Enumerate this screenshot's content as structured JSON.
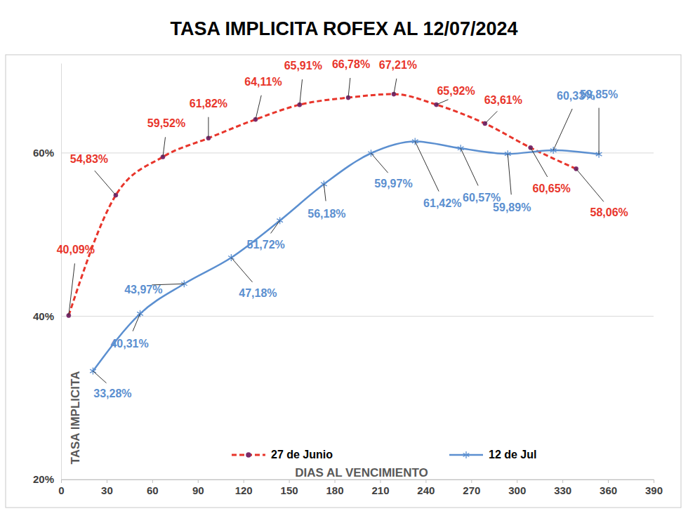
{
  "chart_data": {
    "type": "line",
    "title": "TASA IMPLICITA ROFEX AL 12/07/2024",
    "x_label": "DIAS AL VENCIMIENTO",
    "y_label": "TASA IMPLICITA",
    "xlim": [
      0,
      390
    ],
    "xticks": [
      0,
      30,
      60,
      90,
      120,
      150,
      180,
      210,
      240,
      270,
      300,
      330,
      360,
      390
    ],
    "ylim": [
      20,
      71
    ],
    "yticks": [
      {
        "value": 20,
        "label": "20%"
      },
      {
        "value": 40,
        "label": "40%"
      },
      {
        "value": 60,
        "label": "60%"
      }
    ],
    "grid": true,
    "legend": "bottom",
    "data_labels": true,
    "series": [
      {
        "name": "27 de Junio",
        "color": "#e8352b",
        "marker": "circle",
        "line_style": "dashed",
        "x": [
          5,
          36,
          67,
          97,
          128,
          157,
          189,
          219,
          247,
          279,
          309,
          339
        ],
        "values": [
          40.09,
          54.83,
          59.52,
          61.82,
          64.11,
          65.91,
          66.78,
          67.21,
          65.92,
          63.61,
          60.65,
          58.06
        ],
        "value_labels": [
          "40,09%",
          "54,83%",
          "59,52%",
          "61,82%",
          "64,11%",
          "65,91%",
          "66,78%",
          "67,21%",
          "65,92%",
          "63,61%",
          "60,65%",
          "58,06%"
        ]
      },
      {
        "name": "12 de Jul",
        "color": "#5b8fd0",
        "marker": "asterisk",
        "line_style": "solid",
        "x": [
          21,
          52,
          81,
          112,
          144,
          173,
          204,
          233,
          263,
          294,
          324,
          354
        ],
        "values": [
          33.28,
          40.31,
          43.97,
          47.18,
          51.72,
          56.18,
          59.97,
          61.42,
          60.57,
          59.89,
          60.33,
          59.85
        ],
        "value_labels": [
          "33,28%",
          "40,31%",
          "43,97%",
          "47,18%",
          "51,72%",
          "56,18%",
          "59,97%",
          "61,42%",
          "60,57%",
          "59,89%",
          "60,33%",
          "59,85%"
        ]
      }
    ]
  }
}
